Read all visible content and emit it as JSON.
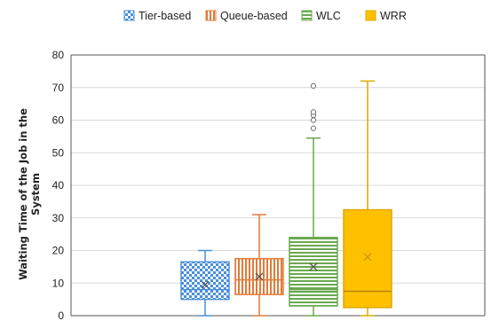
{
  "chart_data": {
    "type": "box",
    "title": "",
    "xlabel": "",
    "ylabel_lines": [
      "Waiting Time of the Job in the",
      "System"
    ],
    "ylim": [
      0,
      80
    ],
    "yticks": [
      0,
      10,
      20,
      30,
      40,
      50,
      60,
      70,
      80
    ],
    "grid": true,
    "legend_position": "top",
    "series": [
      {
        "name": "Tier-based",
        "color": "#4a90d9",
        "pattern": "checker",
        "whisker_low": 0,
        "q1": 5,
        "median": 8,
        "q3": 16.5,
        "whisker_high": 20,
        "mean": 9.5,
        "outliers": []
      },
      {
        "name": "Queue-based",
        "color": "#e07b39",
        "pattern": "vertical",
        "whisker_low": 0,
        "q1": 6.5,
        "median": 11,
        "q3": 17.5,
        "whisker_high": 31,
        "mean": 12,
        "outliers": []
      },
      {
        "name": "WLC",
        "color": "#6aa84f",
        "pattern": "horizontal",
        "whisker_low": 0,
        "q1": 3,
        "median": 8,
        "q3": 24,
        "whisker_high": 54.5,
        "mean": 15,
        "outliers": [
          57.5,
          60,
          61.5,
          62.5,
          70.5
        ]
      },
      {
        "name": "WRR",
        "color": "#ffc000",
        "pattern": "solid",
        "whisker_low": 0,
        "q1": 2.5,
        "median": 7.5,
        "q3": 32.5,
        "whisker_high": 72,
        "mean": 18,
        "outliers": []
      }
    ]
  }
}
